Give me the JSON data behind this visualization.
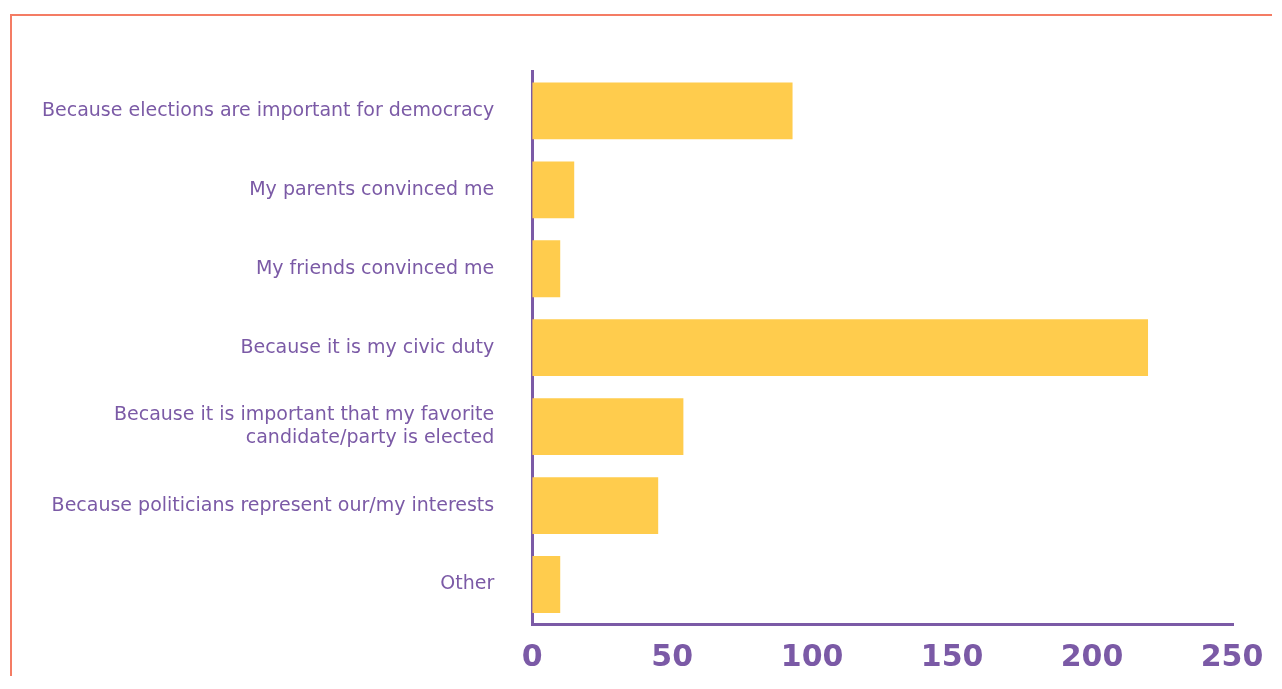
{
  "chart_data": {
    "type": "bar",
    "orientation": "horizontal",
    "categories": [
      "Because elections are important for democracy",
      "My parents convinced me",
      "My friends convinced me",
      "Because it is my civic duty",
      "Because it is important that my favorite candidate/party is elected",
      "Because politicians represent our/my interests",
      "Other"
    ],
    "values": [
      93,
      15,
      10,
      220,
      54,
      45,
      10
    ],
    "color": "#ffcc4d",
    "xlim": [
      0,
      250
    ],
    "xticks": [
      0,
      50,
      100,
      150,
      200,
      250
    ],
    "grid": false,
    "legend": false
  }
}
